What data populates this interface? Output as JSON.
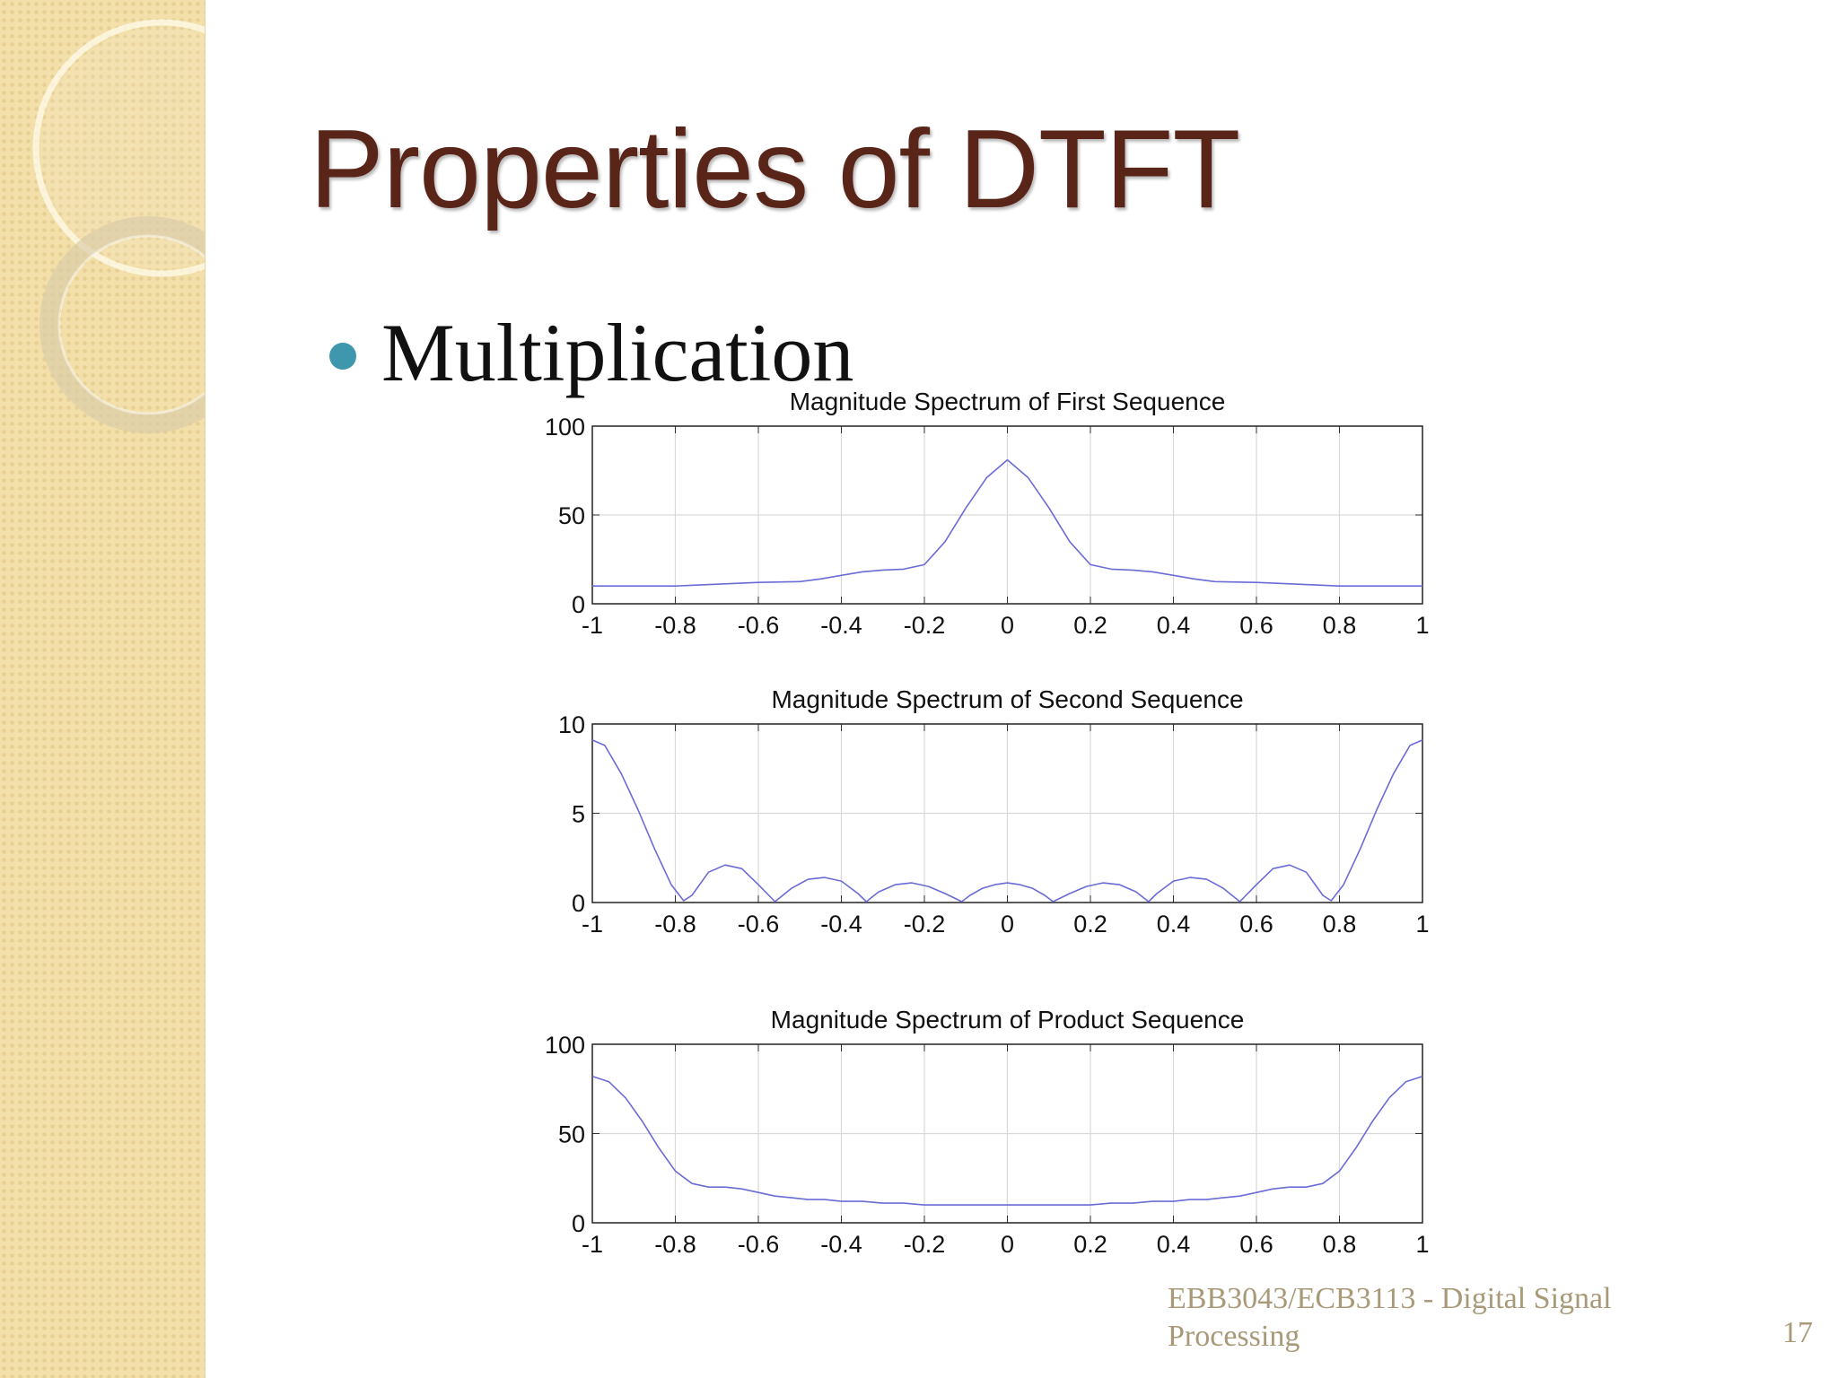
{
  "slide": {
    "title": "Properties of DTFT",
    "bullet": "Multiplication",
    "footer": "EBB3043/ECB3113 - Digital Signal Processing",
    "page_number": "17"
  },
  "colors": {
    "title": "#5a2519",
    "bullet": "#3f97ad",
    "footer": "#a89a78",
    "sidebar": "#f2dfa9",
    "series_line": "#6b6bd6"
  },
  "chart_data": [
    {
      "type": "line",
      "title": "Magnitude Spectrum of First Sequence",
      "xlim": [
        -1,
        1
      ],
      "ylim": [
        0,
        100
      ],
      "xticks": [
        "-1",
        "-0.8",
        "-0.6",
        "-0.4",
        "-0.2",
        "0",
        "0.2",
        "0.4",
        "0.6",
        "0.8",
        "1"
      ],
      "yticks": [
        "0",
        "50",
        "100"
      ],
      "grid": true,
      "x": [
        -1,
        -0.9,
        -0.8,
        -0.75,
        -0.7,
        -0.6,
        -0.5,
        -0.45,
        -0.4,
        -0.35,
        -0.3,
        -0.25,
        -0.2,
        -0.15,
        -0.1,
        -0.05,
        0,
        0.05,
        0.1,
        0.15,
        0.2,
        0.25,
        0.3,
        0.35,
        0.4,
        0.45,
        0.5,
        0.6,
        0.7,
        0.75,
        0.8,
        0.9,
        1
      ],
      "y": [
        10,
        10,
        10,
        10.5,
        11,
        12,
        12.5,
        14,
        16,
        18,
        19,
        19.5,
        22,
        35,
        54,
        71,
        81,
        71,
        54,
        35,
        22,
        19.5,
        19,
        18,
        16,
        14,
        12.5,
        12,
        11,
        10.5,
        10,
        10,
        10
      ]
    },
    {
      "type": "line",
      "title": "Magnitude Spectrum of Second Sequence",
      "xlim": [
        -1,
        1
      ],
      "ylim": [
        0,
        10
      ],
      "xticks": [
        "-1",
        "-0.8",
        "-0.6",
        "-0.4",
        "-0.2",
        "0",
        "0.2",
        "0.4",
        "0.6",
        "0.8",
        "1"
      ],
      "yticks": [
        "0",
        "5",
        "10"
      ],
      "grid": true,
      "x": [
        -1,
        -0.97,
        -0.93,
        -0.89,
        -0.85,
        -0.81,
        -0.78,
        -0.76,
        -0.72,
        -0.68,
        -0.64,
        -0.6,
        -0.56,
        -0.52,
        -0.48,
        -0.44,
        -0.4,
        -0.36,
        -0.34,
        -0.31,
        -0.27,
        -0.23,
        -0.19,
        -0.15,
        -0.11,
        -0.09,
        -0.06,
        -0.03,
        0,
        0.03,
        0.06,
        0.09,
        0.11,
        0.15,
        0.19,
        0.23,
        0.27,
        0.31,
        0.34,
        0.36,
        0.4,
        0.44,
        0.48,
        0.52,
        0.56,
        0.6,
        0.64,
        0.68,
        0.72,
        0.76,
        0.78,
        0.81,
        0.85,
        0.89,
        0.93,
        0.97,
        1
      ],
      "y": [
        9.1,
        8.8,
        7.2,
        5.2,
        3.0,
        1.0,
        0.1,
        0.4,
        1.7,
        2.1,
        1.9,
        1.0,
        0.05,
        0.8,
        1.3,
        1.4,
        1.2,
        0.5,
        0.05,
        0.6,
        1.0,
        1.1,
        0.9,
        0.5,
        0.05,
        0.4,
        0.8,
        1.0,
        1.1,
        1.0,
        0.8,
        0.4,
        0.05,
        0.5,
        0.9,
        1.1,
        1.0,
        0.6,
        0.05,
        0.5,
        1.2,
        1.4,
        1.3,
        0.8,
        0.05,
        1.0,
        1.9,
        2.1,
        1.7,
        0.4,
        0.1,
        1.0,
        3.0,
        5.2,
        7.2,
        8.8,
        9.1
      ]
    },
    {
      "type": "line",
      "title": "Magnitude Spectrum of Product Sequence",
      "xlim": [
        -1,
        1
      ],
      "ylim": [
        0,
        100
      ],
      "xticks": [
        "-1",
        "-0.8",
        "-0.6",
        "-0.4",
        "-0.2",
        "0",
        "0.2",
        "0.4",
        "0.6",
        "0.8",
        "1"
      ],
      "yticks": [
        "0",
        "50",
        "100"
      ],
      "grid": true,
      "x": [
        -1,
        -0.96,
        -0.92,
        -0.88,
        -0.84,
        -0.8,
        -0.76,
        -0.72,
        -0.68,
        -0.64,
        -0.6,
        -0.56,
        -0.52,
        -0.48,
        -0.44,
        -0.4,
        -0.35,
        -0.3,
        -0.25,
        -0.2,
        -0.1,
        0,
        0.1,
        0.2,
        0.25,
        0.3,
        0.35,
        0.4,
        0.44,
        0.48,
        0.52,
        0.56,
        0.6,
        0.64,
        0.68,
        0.72,
        0.76,
        0.8,
        0.84,
        0.88,
        0.92,
        0.96,
        1
      ],
      "y": [
        82,
        79,
        70,
        57,
        42,
        29,
        22,
        20,
        20,
        19,
        17,
        15,
        14,
        13,
        13,
        12,
        12,
        11,
        11,
        10,
        10,
        10,
        10,
        10,
        11,
        11,
        12,
        12,
        13,
        13,
        14,
        15,
        17,
        19,
        20,
        20,
        22,
        29,
        42,
        57,
        70,
        79,
        82
      ]
    }
  ]
}
